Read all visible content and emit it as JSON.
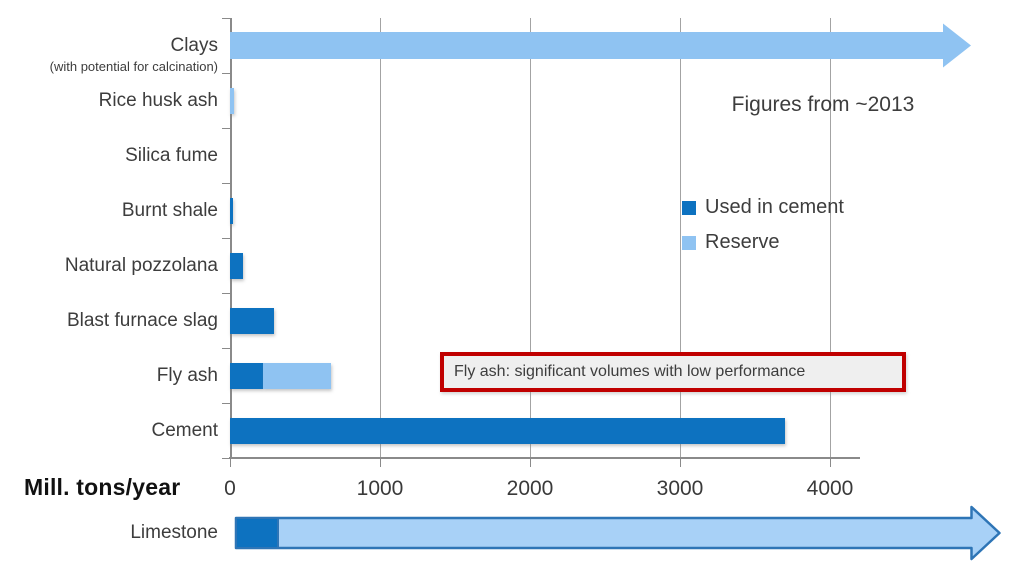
{
  "note": {
    "text": "Figures from ~2013"
  },
  "legend": {
    "used_label": "Used in cement",
    "reserve_label": "Reserve"
  },
  "annotation": {
    "text": "Fly ash: significant volumes with low performance"
  },
  "axis": {
    "label": "Mill. tons/year",
    "ticks": [
      0,
      1000,
      2000,
      3000,
      4000
    ]
  },
  "colors": {
    "used": "#0d72c0",
    "reserve": "#8fc3f2",
    "limestone_fill": "#a8d1f7",
    "arrow_border": "#2e75b6",
    "grid": "#a3a3a3",
    "axis_line": "#8a8a8a",
    "text": "#3d3d3d",
    "callout_border": "#c00000",
    "callout_bg": "#efefef"
  },
  "chart_data": {
    "type": "bar",
    "orientation": "horizontal",
    "title": "",
    "xlabel": "Mill. tons/year",
    "x_ticks": [
      0,
      1000,
      2000,
      3000,
      4000
    ],
    "xlim": [
      0,
      4200
    ],
    "grid": true,
    "legend_position": "right",
    "legend_entries": [
      "Used in cement",
      "Reserve"
    ],
    "annotations": [
      "Fly ash: significant volumes with low performance",
      "Figures from ~2013"
    ],
    "categories": [
      "Clays",
      "Rice husk ash",
      "Silica fume",
      "Burnt shale",
      "Natural pozzolana",
      "Blast furnace slag",
      "Fly ash",
      "Cement",
      "Limestone"
    ],
    "rows": [
      {
        "label": "Clays",
        "sublabel": "(with potential for calcination)",
        "used": 0,
        "reserve": 0,
        "arrow": {
          "style": "reserve",
          "open_ended": true,
          "approx_end": 4940
        }
      },
      {
        "label": "Rice husk ash",
        "used": 0,
        "reserve": 25
      },
      {
        "label": "Silica fume",
        "used": 0,
        "reserve": 0
      },
      {
        "label": "Burnt shale",
        "used": 20,
        "reserve": 0
      },
      {
        "label": "Natural pozzolana",
        "used": 85,
        "reserve": 0
      },
      {
        "label": "Blast furnace slag",
        "used": 290,
        "reserve": 0
      },
      {
        "label": "Fly ash",
        "used": 220,
        "reserve": 450
      },
      {
        "label": "Cement",
        "used": 3700,
        "reserve": 0
      },
      {
        "label": "Limestone",
        "used": 280,
        "reserve": 0,
        "below_axis": true,
        "arrow": {
          "style": "outlined",
          "open_ended": true,
          "approx_end": 5130
        }
      }
    ]
  }
}
